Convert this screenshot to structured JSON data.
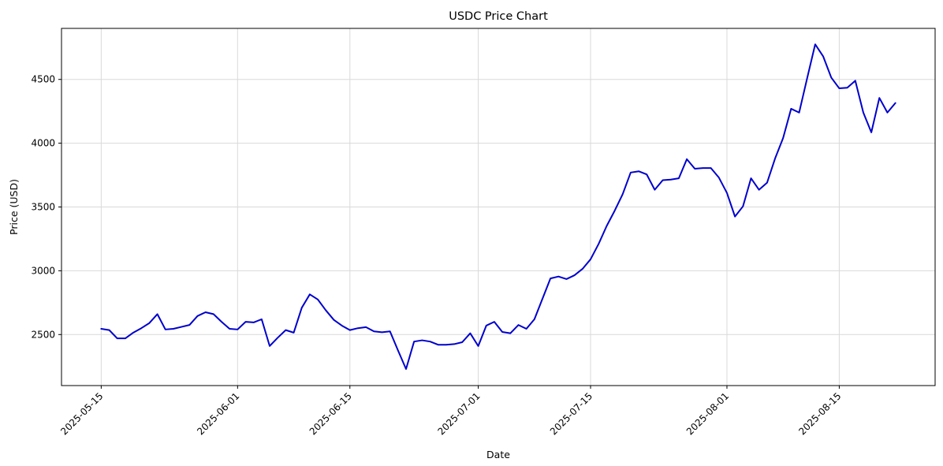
{
  "chart_data": {
    "type": "line",
    "title": "USDC Price Chart",
    "xlabel": "Date",
    "ylabel": "Price (USD)",
    "legend": null,
    "grid": true,
    "x": [
      "2025-05-15",
      "2025-05-16",
      "2025-05-17",
      "2025-05-18",
      "2025-05-19",
      "2025-05-20",
      "2025-05-21",
      "2025-05-22",
      "2025-05-23",
      "2025-05-24",
      "2025-05-25",
      "2025-05-26",
      "2025-05-27",
      "2025-05-28",
      "2025-05-29",
      "2025-05-30",
      "2025-05-31",
      "2025-06-01",
      "2025-06-02",
      "2025-06-03",
      "2025-06-04",
      "2025-06-05",
      "2025-06-06",
      "2025-06-07",
      "2025-06-08",
      "2025-06-09",
      "2025-06-10",
      "2025-06-11",
      "2025-06-12",
      "2025-06-13",
      "2025-06-14",
      "2025-06-15",
      "2025-06-16",
      "2025-06-17",
      "2025-06-18",
      "2025-06-19",
      "2025-06-20",
      "2025-06-21",
      "2025-06-22",
      "2025-06-23",
      "2025-06-24",
      "2025-06-25",
      "2025-06-26",
      "2025-06-27",
      "2025-06-28",
      "2025-06-29",
      "2025-06-30",
      "2025-07-01",
      "2025-07-02",
      "2025-07-03",
      "2025-07-04",
      "2025-07-05",
      "2025-07-06",
      "2025-07-07",
      "2025-07-08",
      "2025-07-09",
      "2025-07-10",
      "2025-07-11",
      "2025-07-12",
      "2025-07-13",
      "2025-07-14",
      "2025-07-15",
      "2025-07-16",
      "2025-07-17",
      "2025-07-18",
      "2025-07-19",
      "2025-07-20",
      "2025-07-21",
      "2025-07-22",
      "2025-07-23",
      "2025-07-24",
      "2025-07-25",
      "2025-07-26",
      "2025-07-27",
      "2025-07-28",
      "2025-07-29",
      "2025-07-30",
      "2025-07-31",
      "2025-08-01",
      "2025-08-02",
      "2025-08-03",
      "2025-08-04",
      "2025-08-05",
      "2025-08-06",
      "2025-08-07",
      "2025-08-08",
      "2025-08-09",
      "2025-08-10",
      "2025-08-11",
      "2025-08-12",
      "2025-08-13",
      "2025-08-14",
      "2025-08-15",
      "2025-08-16",
      "2025-08-17",
      "2025-08-18",
      "2025-08-19",
      "2025-08-20",
      "2025-08-21",
      "2025-08-22"
    ],
    "y": [
      2545,
      2535,
      2470,
      2470,
      2515,
      2550,
      2590,
      2660,
      2540,
      2545,
      2560,
      2575,
      2645,
      2675,
      2660,
      2600,
      2545,
      2540,
      2600,
      2595,
      2620,
      2410,
      2475,
      2535,
      2515,
      2710,
      2815,
      2775,
      2690,
      2615,
      2570,
      2535,
      2550,
      2558,
      2525,
      2518,
      2525,
      2375,
      2230,
      2445,
      2455,
      2445,
      2420,
      2420,
      2425,
      2440,
      2510,
      2410,
      2570,
      2600,
      2520,
      2510,
      2575,
      2545,
      2620,
      2780,
      2940,
      2955,
      2935,
      2965,
      3015,
      3090,
      3210,
      3350,
      3470,
      3600,
      3770,
      3780,
      3755,
      3635,
      3710,
      3715,
      3725,
      3875,
      3800,
      3805,
      3805,
      3730,
      3610,
      3425,
      3505,
      3725,
      3635,
      3690,
      3880,
      4040,
      4270,
      4240,
      4510,
      4775,
      4680,
      4515,
      4430,
      4435,
      4490,
      4240,
      4085,
      4355,
      4240,
      4315
    ],
    "x_ticks": [
      "2025-05-15",
      "2025-06-01",
      "2025-06-15",
      "2025-07-01",
      "2025-07-15",
      "2025-08-01",
      "2025-08-15"
    ],
    "x_tick_rotation": 45,
    "y_ticks": [
      2500,
      3000,
      3500,
      4000,
      4500
    ],
    "ylim": [
      2100,
      4900
    ],
    "x_margin_fraction": 0.05,
    "legend_position": "none",
    "colors": {
      "line": "#0000cd",
      "grid": "#d9d9d9",
      "spine": "#000000",
      "background": "#ffffff",
      "text": "#000000"
    }
  }
}
